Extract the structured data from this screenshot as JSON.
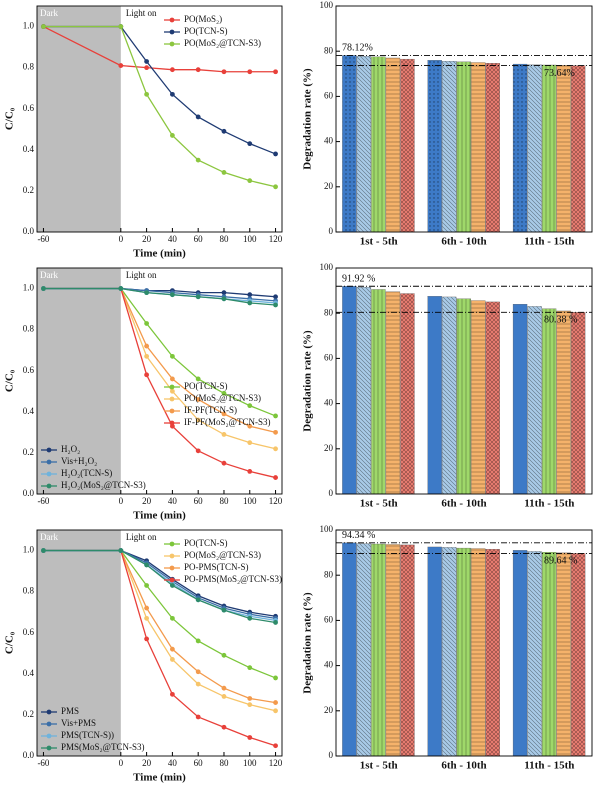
{
  "chart_data": [
    {
      "type": "line",
      "xlabel": "Time (min)",
      "ylabel": "C/C₀",
      "annotations": [
        "Dark",
        "Light on"
      ],
      "x": [
        -60,
        0,
        20,
        40,
        60,
        80,
        100,
        120
      ],
      "xlim": [
        -65,
        125
      ],
      "xticks": [
        -60,
        0,
        20,
        40,
        60,
        80,
        100,
        120
      ],
      "ylim": [
        0,
        1.1
      ],
      "yticks": [
        {
          "value": 0,
          "label": "0.0"
        },
        0.2,
        0.4,
        0.6,
        0.8,
        {
          "value": 1,
          "label": "1.0"
        }
      ],
      "series": [
        {
          "name": "PO(MoS₂)",
          "color": "#e8403a",
          "legend": "upper right",
          "values": [
            1.0,
            0.81,
            0.8,
            0.79,
            0.79,
            0.78,
            0.78,
            0.78
          ]
        },
        {
          "name": "PO(TCN-S)",
          "color": "#1f3b73",
          "legend": "upper right",
          "values": [
            1.0,
            1.0,
            0.83,
            0.67,
            0.56,
            0.49,
            0.43,
            0.38
          ]
        },
        {
          "name": "PO(MoS₂@TCN-S3)",
          "color": "#8cc63f",
          "legend": "upper right",
          "values": [
            1.0,
            1.0,
            0.67,
            0.47,
            0.35,
            0.29,
            0.25,
            0.22
          ]
        }
      ]
    },
    {
      "type": "bar",
      "ylabel": "Degradation rate (%)",
      "categories": [
        "1st - 5th",
        "6th - 10th",
        "11th - 15th"
      ],
      "ylim": [
        0,
        100
      ],
      "yticks": [
        0,
        20,
        40,
        60,
        80,
        100
      ],
      "ref_lines": [
        78.12,
        73.64
      ],
      "ref_labels": [
        "78.12%",
        "73.64%"
      ],
      "series": [
        {
          "color": "#3d7ac7",
          "hatch": "dots",
          "values": [
            78.12,
            76.0,
            74.3
          ]
        },
        {
          "color": "#a9cbe8",
          "hatch": "backslash",
          "values": [
            77.8,
            75.6,
            74.0
          ]
        },
        {
          "color": "#9fd86a",
          "hatch": "vertical",
          "values": [
            77.5,
            75.3,
            73.9
          ]
        },
        {
          "color": "#f5b26b",
          "hatch": "horizontal",
          "values": [
            77.0,
            75.0,
            73.8
          ]
        },
        {
          "color": "#ee7f73",
          "hatch": "cross",
          "values": [
            76.5,
            74.7,
            73.64
          ]
        }
      ]
    },
    {
      "type": "line",
      "xlabel": "Time (min)",
      "ylabel": "C/C₀",
      "annotations": [
        "Dark",
        "Light on"
      ],
      "x": [
        -60,
        0,
        20,
        40,
        60,
        80,
        100,
        120
      ],
      "xlim": [
        -65,
        125
      ],
      "xticks": [
        -60,
        0,
        20,
        40,
        60,
        80,
        100,
        120
      ],
      "ylim": [
        0,
        1.1
      ],
      "yticks": [
        {
          "value": 0,
          "label": "0.0"
        },
        0.2,
        0.4,
        0.6,
        0.8,
        {
          "value": 1,
          "label": "1.0"
        }
      ],
      "series": [
        {
          "name": "PO(TCN-S)",
          "color": "#7cc63a",
          "legend": "center right",
          "values": [
            1.0,
            1.0,
            0.83,
            0.67,
            0.56,
            0.49,
            0.43,
            0.38
          ]
        },
        {
          "name": "PO(MoS₂@TCN-S3)",
          "color": "#f7c56a",
          "legend": "center right",
          "values": [
            1.0,
            1.0,
            0.67,
            0.5,
            0.36,
            0.29,
            0.25,
            0.22
          ]
        },
        {
          "name": "IF-PF(TCN-S)",
          "color": "#f39a4c",
          "legend": "center right",
          "values": [
            1.0,
            1.0,
            0.72,
            0.56,
            0.46,
            0.39,
            0.33,
            0.3
          ]
        },
        {
          "name": "IF-PF(MoS₂@TCN-S3)",
          "color": "#e8403a",
          "legend": "center right",
          "values": [
            1.0,
            1.0,
            0.58,
            0.33,
            0.21,
            0.15,
            0.11,
            0.08
          ]
        },
        {
          "name": "H₂O₂",
          "color": "#1f3b73",
          "legend": "lower left",
          "values": [
            1.0,
            1.0,
            0.99,
            0.99,
            0.98,
            0.98,
            0.97,
            0.96
          ]
        },
        {
          "name": "Vis+H₂O₂",
          "color": "#3b6fa8",
          "legend": "lower left",
          "values": [
            1.0,
            1.0,
            0.99,
            0.98,
            0.97,
            0.96,
            0.95,
            0.94
          ]
        },
        {
          "name": "H₂O₂(TCN-S)",
          "color": "#6fb3dc",
          "legend": "lower left",
          "values": [
            1.0,
            1.0,
            0.98,
            0.97,
            0.96,
            0.95,
            0.94,
            0.93
          ]
        },
        {
          "name": "H₂O₂(MoS₂@TCN-S3)",
          "color": "#2e8b6a",
          "legend": "lower left",
          "values": [
            1.0,
            1.0,
            0.98,
            0.97,
            0.96,
            0.95,
            0.93,
            0.92
          ]
        }
      ]
    },
    {
      "type": "bar",
      "ylabel": "Degradation rate (%)",
      "categories": [
        "1st - 5th",
        "6th - 10th",
        "11th - 15th"
      ],
      "ylim": [
        0,
        100
      ],
      "yticks": [
        0,
        20,
        40,
        60,
        80,
        100
      ],
      "ref_lines": [
        91.92,
        80.38
      ],
      "ref_labels": [
        "91.92 %",
        "80.38 %"
      ],
      "series": [
        {
          "color": "#3d7ac7",
          "hatch": "none",
          "values": [
            91.92,
            87.5,
            84.0
          ]
        },
        {
          "color": "#a9cbe8",
          "hatch": "backslash",
          "values": [
            91.5,
            87.2,
            83.0
          ]
        },
        {
          "color": "#9fd86a",
          "hatch": "vertical",
          "values": [
            90.5,
            86.4,
            82.0
          ]
        },
        {
          "color": "#f5b26b",
          "hatch": "horizontal",
          "values": [
            89.5,
            85.6,
            81.0
          ]
        },
        {
          "color": "#ee7f73",
          "hatch": "cross",
          "values": [
            88.7,
            85.0,
            80.38
          ]
        }
      ]
    },
    {
      "type": "line",
      "xlabel": "Time (min)",
      "ylabel": "C/C₀",
      "annotations": [
        "Dark",
        "Light on"
      ],
      "x": [
        -60,
        0,
        20,
        40,
        60,
        80,
        100,
        120
      ],
      "xlim": [
        -65,
        125
      ],
      "xticks": [
        -60,
        0,
        20,
        40,
        60,
        80,
        100,
        120
      ],
      "ylim": [
        0,
        1.1
      ],
      "yticks": [
        {
          "value": 0,
          "label": "0.0"
        },
        0.2,
        0.4,
        0.6,
        0.8,
        {
          "value": 1,
          "label": "1.0"
        }
      ],
      "series": [
        {
          "name": "PO(TCN-S)",
          "color": "#7cc63a",
          "legend": "upper right",
          "values": [
            1.0,
            1.0,
            0.83,
            0.67,
            0.56,
            0.49,
            0.43,
            0.38
          ]
        },
        {
          "name": "PO(MoS₂@TCN-S3)",
          "color": "#f7c56a",
          "legend": "upper right",
          "values": [
            1.0,
            1.0,
            0.67,
            0.47,
            0.35,
            0.29,
            0.25,
            0.22
          ]
        },
        {
          "name": "PO-PMS(TCN-S)",
          "color": "#f39a4c",
          "legend": "upper right",
          "values": [
            1.0,
            1.0,
            0.72,
            0.52,
            0.41,
            0.33,
            0.28,
            0.26
          ]
        },
        {
          "name": "PO-PMS(MoS₂@TCN-S3)",
          "color": "#e8403a",
          "legend": "upper right",
          "values": [
            1.0,
            1.0,
            0.57,
            0.3,
            0.19,
            0.14,
            0.09,
            0.05
          ]
        },
        {
          "name": "PMS",
          "color": "#1f3b73",
          "legend": "lower left",
          "values": [
            1.0,
            1.0,
            0.95,
            0.86,
            0.78,
            0.73,
            0.7,
            0.68
          ]
        },
        {
          "name": "Vis+PMS",
          "color": "#3b6fa8",
          "legend": "lower left",
          "values": [
            1.0,
            1.0,
            0.94,
            0.85,
            0.77,
            0.72,
            0.69,
            0.67
          ]
        },
        {
          "name": "PMS(TCN-S))",
          "color": "#6fb3dc",
          "legend": "lower left",
          "values": [
            1.0,
            1.0,
            0.93,
            0.84,
            0.76,
            0.71,
            0.68,
            0.66
          ]
        },
        {
          "name": "PMS(MoS₂@TCN-S3)",
          "color": "#2e8b6a",
          "legend": "lower left",
          "values": [
            1.0,
            1.0,
            0.93,
            0.83,
            0.76,
            0.71,
            0.67,
            0.65
          ]
        }
      ]
    },
    {
      "type": "bar",
      "ylabel": "Degradation rate (%)",
      "categories": [
        "1st - 5th",
        "6th - 10th",
        "11th - 15th"
      ],
      "ylim": [
        0,
        100
      ],
      "yticks": [
        0,
        20,
        40,
        60,
        80,
        100
      ],
      "ref_lines": [
        94.34,
        89.64
      ],
      "ref_labels": [
        "94.34 %",
        "89.64 %"
      ],
      "series": [
        {
          "color": "#3d7ac7",
          "hatch": "none",
          "values": [
            94.34,
            92.5,
            91.0
          ]
        },
        {
          "color": "#a9cbe8",
          "hatch": "backslash",
          "values": [
            94.0,
            92.3,
            90.5
          ]
        },
        {
          "color": "#9fd86a",
          "hatch": "vertical",
          "values": [
            93.8,
            92.0,
            90.2
          ]
        },
        {
          "color": "#f5b26b",
          "hatch": "horizontal",
          "values": [
            93.6,
            91.8,
            89.9
          ]
        },
        {
          "color": "#ee7f73",
          "hatch": "cross",
          "values": [
            93.4,
            91.5,
            89.64
          ]
        }
      ]
    }
  ]
}
